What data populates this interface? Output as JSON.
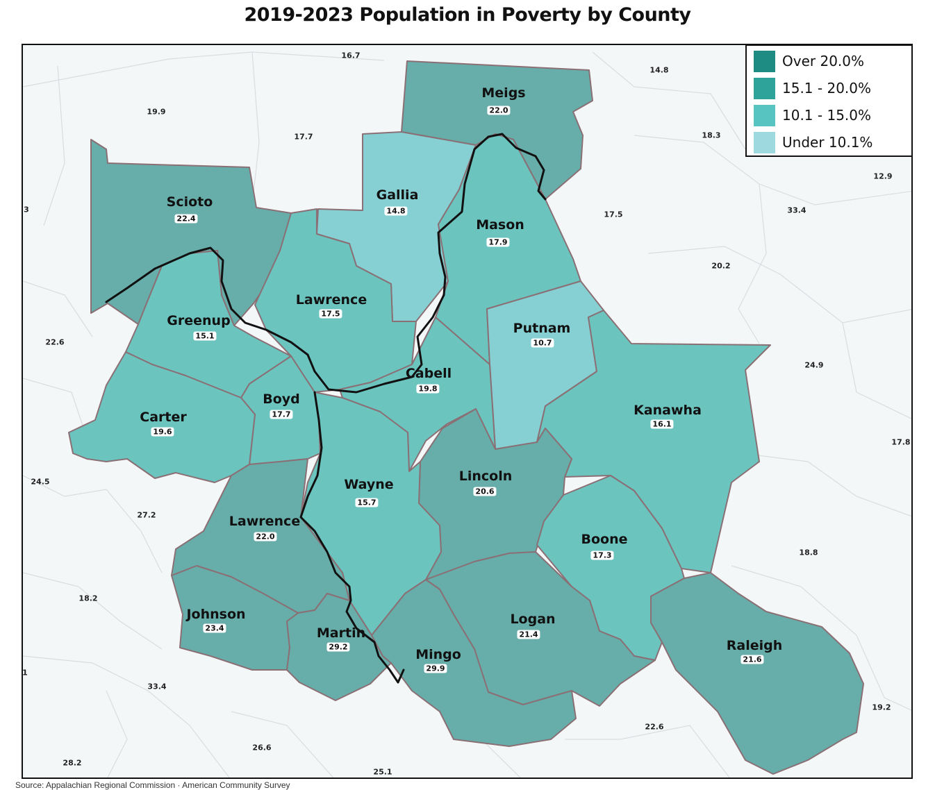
{
  "title": "2019-2023 Population in Poverty by County",
  "legend": {
    "items": [
      {
        "label": "Over 20.0%",
        "color": "#1e8c82"
      },
      {
        "label": "15.1 - 20.0%",
        "color": "#2ea39a"
      },
      {
        "label": "10.1 - 15.0%",
        "color": "#57c4c2"
      },
      {
        "label": "Under 10.1%",
        "color": "#9ed9df"
      }
    ]
  },
  "fill_colors": {
    "over_20": "#67aeaa",
    "range_15_20": "#6cc4bf",
    "range_10_15": "#6cc4bf",
    "under_10": "#86d0d3",
    "background": "#f4f7f8"
  },
  "counties": [
    {
      "name": "Meigs",
      "value": "22.0"
    },
    {
      "name": "Gallia",
      "value": "14.8"
    },
    {
      "name": "Mason",
      "value": "17.9"
    },
    {
      "name": "Scioto",
      "value": "22.4"
    },
    {
      "name": "Lawrence",
      "value": "17.5"
    },
    {
      "name": "Greenup",
      "value": "15.1"
    },
    {
      "name": "Putnam",
      "value": "10.7"
    },
    {
      "name": "Cabell",
      "value": "19.8"
    },
    {
      "name": "Boyd",
      "value": "17.7"
    },
    {
      "name": "Carter",
      "value": "19.6"
    },
    {
      "name": "Kanawha",
      "value": "16.1"
    },
    {
      "name": "Lincoln",
      "value": "20.6"
    },
    {
      "name": "Wayne",
      "value": "15.7"
    },
    {
      "name": "Lawrence",
      "value": "22.0"
    },
    {
      "name": "Boone",
      "value": "17.3"
    },
    {
      "name": "Johnson",
      "value": "23.4"
    },
    {
      "name": "Logan",
      "value": "21.4"
    },
    {
      "name": "Martin",
      "value": "29.2"
    },
    {
      "name": "Mingo",
      "value": "29.9"
    },
    {
      "name": "Raleigh",
      "value": "21.6"
    }
  ],
  "surrounding_values": [
    "16.7",
    "14.8",
    "19.9",
    "17.7",
    "18.3",
    "12.9",
    "3",
    "33.4",
    "17.5",
    "20.2",
    "22.6",
    "24.9",
    "17.8",
    "24.5",
    "27.2",
    "18.8",
    "18.2",
    "1",
    "33.4",
    "19.2",
    "22.6",
    "28.2",
    "26.6",
    "25.1"
  ],
  "source_text": "Source: Appalachian Regional Commission · American Community Survey"
}
